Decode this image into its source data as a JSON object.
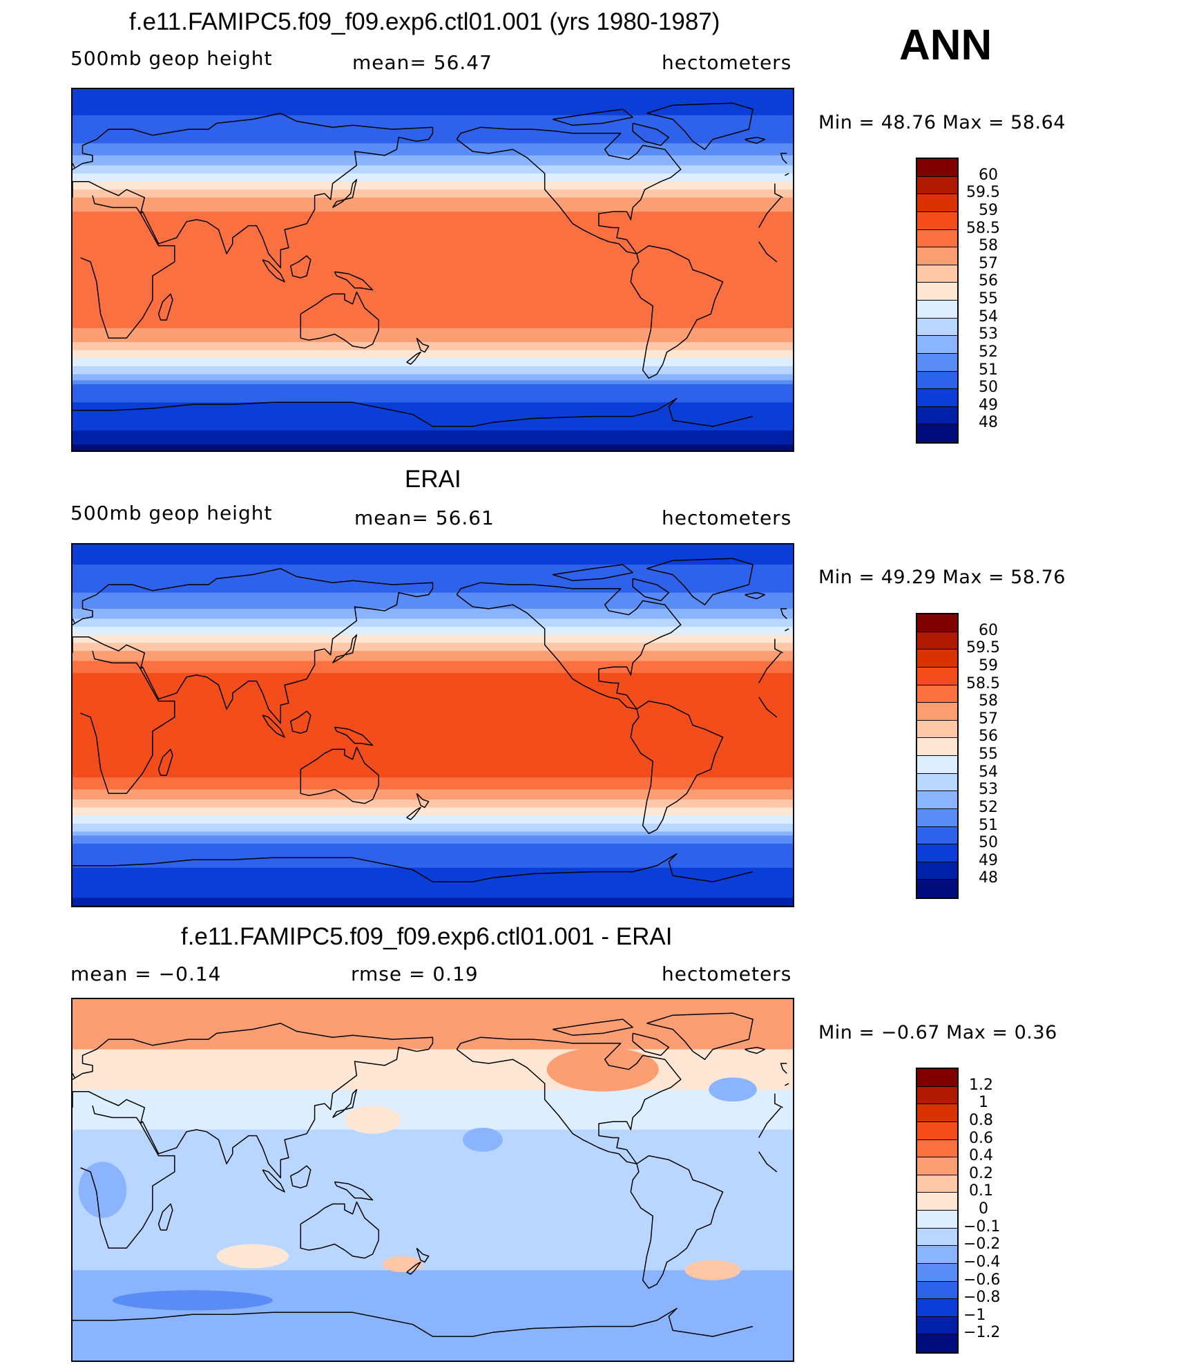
{
  "header": {
    "ann_label": "ANN"
  },
  "panels": [
    {
      "title": "f.e11.FAMIPC5.f09_f09.exp6.ctl01.001 (yrs 1980-1987)",
      "left_text": "500mb geop height",
      "center_text": "mean=   56.47",
      "right_text": "hectometers",
      "minmax_text": "Min =   48.76 Max =   58.64",
      "field": "model",
      "colorbar": {
        "labels": [
          "60",
          "59.5",
          "59",
          "58.5",
          "58",
          "57",
          "56",
          "55",
          "54",
          "53",
          "52",
          "51",
          "50",
          "49",
          "48"
        ],
        "colors": [
          "#800000",
          "#b21a00",
          "#d93300",
          "#f24d1a",
          "#fa7040",
          "#fb9e73",
          "#fdc7a8",
          "#fde7d4",
          "#dceeff",
          "#b8d6ff",
          "#8ab5fe",
          "#5a8cf5",
          "#2f62ea",
          "#0a3ed6",
          "#0020a8",
          "#000c7a"
        ]
      }
    },
    {
      "title": "ERAI",
      "left_text": "500mb geop height",
      "center_text": "mean=   56.61",
      "right_text": "hectometers",
      "minmax_text": "Min =   49.29 Max =   58.76",
      "field": "obs",
      "colorbar": {
        "labels": [
          "60",
          "59.5",
          "59",
          "58.5",
          "58",
          "57",
          "56",
          "55",
          "54",
          "53",
          "52",
          "51",
          "50",
          "49",
          "48"
        ],
        "colors": [
          "#800000",
          "#b21a00",
          "#d93300",
          "#f24d1a",
          "#fa7040",
          "#fb9e73",
          "#fdc7a8",
          "#fde7d4",
          "#dceeff",
          "#b8d6ff",
          "#8ab5fe",
          "#5a8cf5",
          "#2f62ea",
          "#0a3ed6",
          "#0020a8",
          "#000c7a"
        ]
      }
    },
    {
      "title": "f.e11.FAMIPC5.f09_f09.exp6.ctl01.001 - ERAI",
      "left_text": "mean =   −0.14",
      "center_text": "rmse =    0.19",
      "right_text": "hectometers",
      "minmax_text": "Min =   −0.67 Max =    0.36",
      "field": "diff",
      "colorbar": {
        "labels": [
          "1.2",
          "1",
          "0.8",
          "0.6",
          "0.4",
          "0.2",
          "0.1",
          "0",
          "−0.1",
          "−0.2",
          "−0.4",
          "−0.6",
          "−0.8",
          "−1",
          "−1.2"
        ],
        "colors": [
          "#800000",
          "#b21a00",
          "#d93300",
          "#f24d1a",
          "#fa7040",
          "#fb9e73",
          "#fdc7a8",
          "#fde7d4",
          "#dceeff",
          "#b8d6ff",
          "#8ab5fe",
          "#5a8cf5",
          "#2f62ea",
          "#0a3ed6",
          "#0020a8",
          "#000c7a"
        ]
      }
    }
  ]
}
